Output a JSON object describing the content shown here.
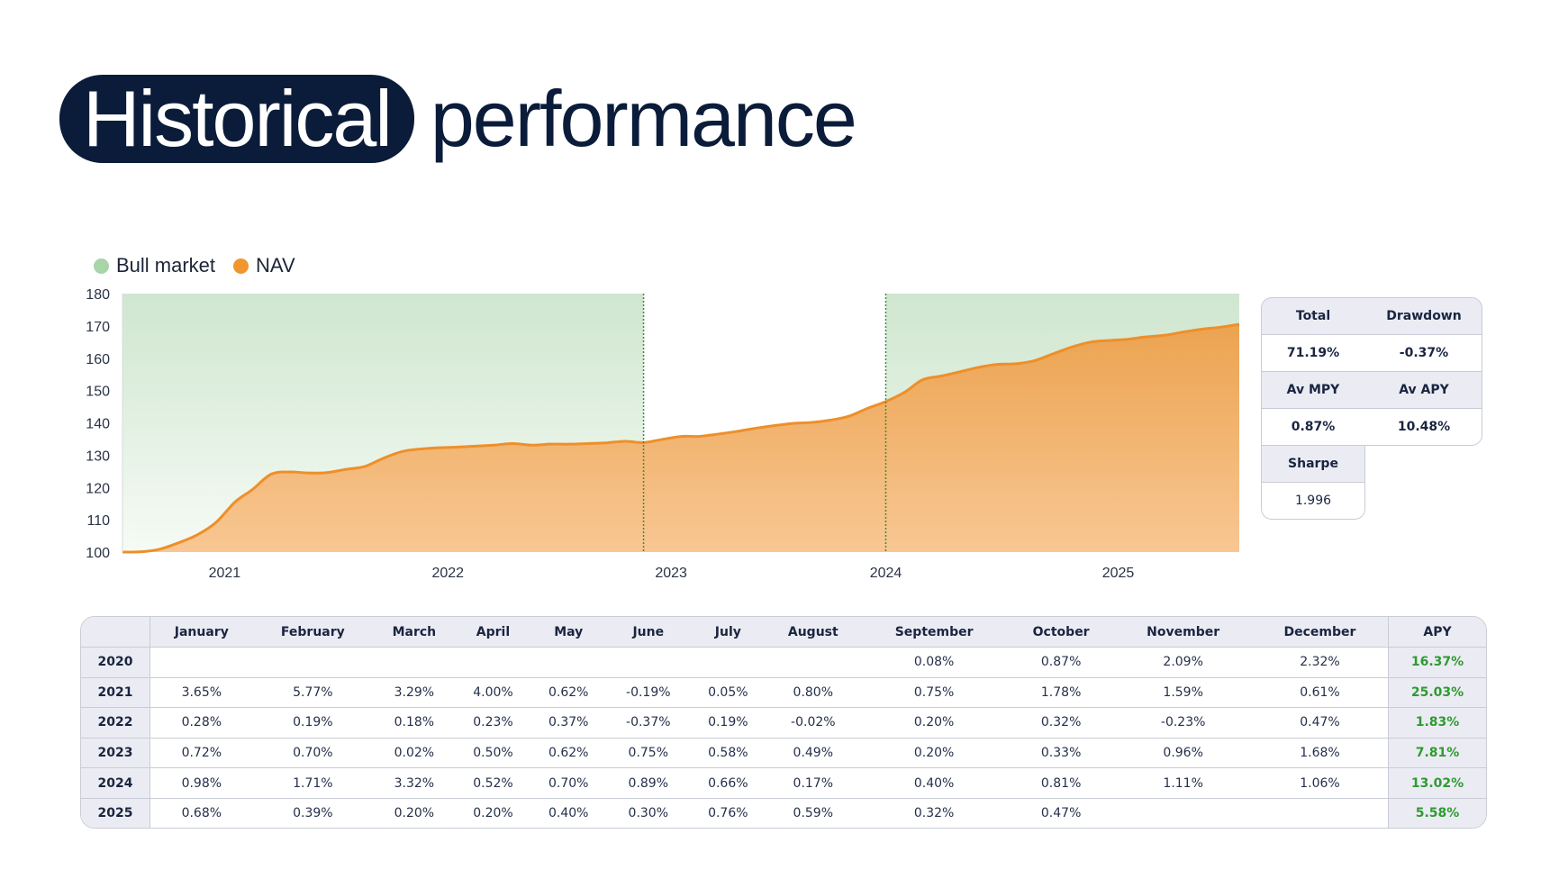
{
  "title": {
    "highlight": "Historical",
    "rest": "performance"
  },
  "legend": [
    {
      "label": "Bull market",
      "color": "#a8d4a8"
    },
    {
      "label": "NAV",
      "color": "#f0962e"
    }
  ],
  "stats": {
    "total_label": "Total",
    "total_value": "71.19%",
    "drawdown_label": "Drawdown",
    "drawdown_value": "-0.37%",
    "av_mpy_label": "Av MPY",
    "av_mpy_value": "0.87%",
    "av_apy_label": "Av APY",
    "av_apy_value": "10.48%",
    "sharpe_label": "Sharpe",
    "sharpe_value": "1.996"
  },
  "chart_data": {
    "type": "area",
    "title": "",
    "xlabel": "",
    "ylabel": "",
    "x_ticks": [
      "2021",
      "2022",
      "2023",
      "2024",
      "2025"
    ],
    "y_ticks": [
      100,
      110,
      120,
      130,
      140,
      150,
      160,
      170,
      180
    ],
    "ylim": [
      100,
      180
    ],
    "xlim": [
      "2020-08-01",
      "2025-08-01"
    ],
    "grid": false,
    "legend_position": "top-left",
    "bull_market_periods": [
      [
        "2020-08-01",
        "2022-12-01"
      ],
      [
        "2024-01-01",
        "2025-08-01"
      ]
    ],
    "series": [
      {
        "name": "NAV",
        "x": [
          "2020-08-01",
          "2020-09-01",
          "2020-10-01",
          "2020-11-01",
          "2020-12-01",
          "2021-01-01",
          "2021-02-01",
          "2021-03-01",
          "2021-04-01",
          "2021-05-01",
          "2021-06-01",
          "2021-07-01",
          "2021-08-01",
          "2021-09-01",
          "2021-10-01",
          "2021-11-01",
          "2021-12-01",
          "2022-01-01",
          "2022-02-01",
          "2022-03-01",
          "2022-04-01",
          "2022-05-01",
          "2022-06-01",
          "2022-07-01",
          "2022-08-01",
          "2022-09-01",
          "2022-10-01",
          "2022-11-01",
          "2022-12-01",
          "2023-01-01",
          "2023-02-01",
          "2023-03-01",
          "2023-04-01",
          "2023-05-01",
          "2023-06-01",
          "2023-07-01",
          "2023-08-01",
          "2023-09-01",
          "2023-10-01",
          "2023-11-01",
          "2023-12-01",
          "2024-01-01",
          "2024-02-01",
          "2024-03-01",
          "2024-04-01",
          "2024-05-01",
          "2024-06-01",
          "2024-07-01",
          "2024-08-01",
          "2024-09-01",
          "2024-10-01",
          "2024-11-01",
          "2024-12-01",
          "2025-01-01",
          "2025-02-01",
          "2025-03-01",
          "2025-04-01",
          "2025-05-01",
          "2025-06-01",
          "2025-07-01",
          "2025-08-01"
        ],
        "values": [
          100.0,
          100.1,
          100.9,
          102.9,
          105.3,
          109.2,
          115.5,
          119.3,
          124.1,
          124.8,
          124.5,
          124.6,
          125.6,
          126.5,
          129.0,
          131.1,
          131.9,
          132.3,
          132.5,
          132.8,
          133.1,
          133.6,
          133.1,
          133.4,
          133.4,
          133.6,
          133.8,
          134.3,
          133.9,
          134.9,
          135.8,
          135.8,
          136.5,
          137.3,
          138.3,
          139.1,
          139.8,
          140.1,
          140.8,
          142.0,
          144.4,
          146.6,
          149.5,
          153.3,
          154.5,
          155.8,
          157.2,
          158.1,
          158.3,
          159.3,
          161.4,
          163.5,
          165.0,
          165.5,
          165.9,
          166.6,
          167.1,
          168.1,
          169.0,
          169.6,
          170.5
        ]
      }
    ]
  },
  "monthly": {
    "corner": "",
    "months": [
      "January",
      "February",
      "March",
      "April",
      "May",
      "June",
      "July",
      "August",
      "September",
      "October",
      "November",
      "December"
    ],
    "apy_label": "APY",
    "rows": [
      {
        "year": "2020",
        "values": [
          "",
          "",
          "",
          "",
          "",
          "",
          "",
          "",
          "0.08%",
          "0.87%",
          "2.09%",
          "2.32%"
        ],
        "apy": "16.37%"
      },
      {
        "year": "2021",
        "values": [
          "3.65%",
          "5.77%",
          "3.29%",
          "4.00%",
          "0.62%",
          "-0.19%",
          "0.05%",
          "0.80%",
          "0.75%",
          "1.78%",
          "1.59%",
          "0.61%"
        ],
        "apy": "25.03%"
      },
      {
        "year": "2022",
        "values": [
          "0.28%",
          "0.19%",
          "0.18%",
          "0.23%",
          "0.37%",
          "-0.37%",
          "0.19%",
          "-0.02%",
          "0.20%",
          "0.32%",
          "-0.23%",
          "0.47%"
        ],
        "apy": "1.83%"
      },
      {
        "year": "2023",
        "values": [
          "0.72%",
          "0.70%",
          "0.02%",
          "0.50%",
          "0.62%",
          "0.75%",
          "0.58%",
          "0.49%",
          "0.20%",
          "0.33%",
          "0.96%",
          "1.68%"
        ],
        "apy": "7.81%"
      },
      {
        "year": "2024",
        "values": [
          "0.98%",
          "1.71%",
          "3.32%",
          "0.52%",
          "0.70%",
          "0.89%",
          "0.66%",
          "0.17%",
          "0.40%",
          "0.81%",
          "1.11%",
          "1.06%"
        ],
        "apy": "13.02%"
      },
      {
        "year": "2025",
        "values": [
          "0.68%",
          "0.39%",
          "0.20%",
          "0.20%",
          "0.40%",
          "0.30%",
          "0.76%",
          "0.59%",
          "0.32%",
          "0.47%",
          "",
          ""
        ],
        "apy": "5.58%"
      }
    ]
  }
}
